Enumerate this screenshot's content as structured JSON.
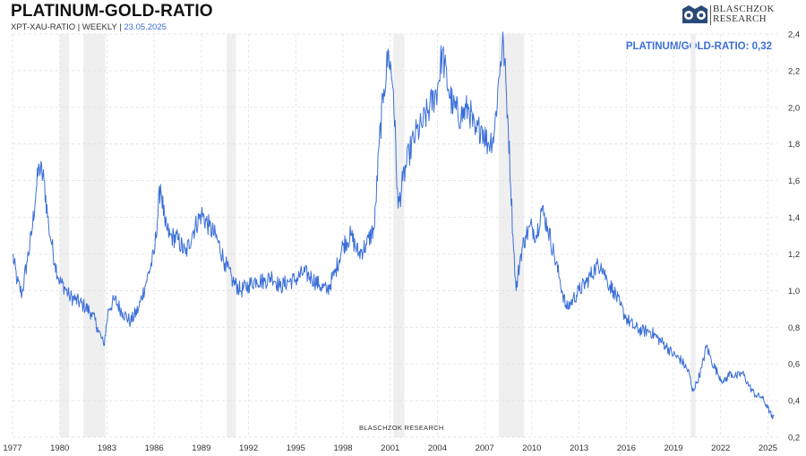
{
  "header": {
    "title": "PLATINUM-GOLD-RATIO",
    "subtitle_prefix": "XPT-XAU-RATIO | WEEKLY |",
    "date": "23.05.2025"
  },
  "logo": {
    "line1": "BLASCHZOK",
    "line2": "RESEARCH"
  },
  "readout": {
    "label": "PLATINUM/GOLD-RATIO: 0,32"
  },
  "watermark": "BLASCHZOK RESEARCH",
  "colors": {
    "line": "#3b6fd8",
    "shade": "#efefef",
    "grid": "#dcdcdc"
  },
  "chart_data": {
    "type": "line",
    "title": "PLATINUM-GOLD-RATIO",
    "xlabel": "",
    "ylabel": "",
    "xlim": [
      1977,
      2025.6
    ],
    "ylim": [
      0.2,
      2.4
    ],
    "x_ticks": [
      1977,
      1980,
      1983,
      1986,
      1989,
      1992,
      1995,
      1998,
      2001,
      2004,
      2007,
      2010,
      2013,
      2016,
      2019,
      2022,
      2025
    ],
    "y_ticks": [
      0.2,
      0.4,
      0.6,
      0.8,
      1.0,
      1.2,
      1.4,
      1.6,
      1.8,
      2.0,
      2.2,
      2.4
    ],
    "y_tick_labels": [
      "0,2",
      "0,4",
      "0,6",
      "0,8",
      "1,0",
      "1,2",
      "1,4",
      "1,6",
      "1,8",
      "2,0",
      "2,2",
      "2,4"
    ],
    "recession_shading": [
      [
        1980.0,
        1980.6
      ],
      [
        1981.5,
        1982.9
      ],
      [
        1990.6,
        1991.2
      ],
      [
        2001.2,
        2001.9
      ],
      [
        2007.9,
        2009.5
      ],
      [
        2020.1,
        2020.4
      ]
    ],
    "series": [
      {
        "name": "Platinum/Gold Ratio",
        "x": [
          1977.0,
          1977.3,
          1977.6,
          1977.9,
          1978.2,
          1978.5,
          1978.7,
          1979.0,
          1979.3,
          1979.5,
          1979.7,
          1980.0,
          1980.3,
          1980.6,
          1981.0,
          1981.5,
          1982.0,
          1982.4,
          1982.8,
          1983.1,
          1983.5,
          1984.0,
          1984.5,
          1985.0,
          1985.5,
          1986.0,
          1986.4,
          1986.7,
          1987.0,
          1987.5,
          1988.0,
          1988.5,
          1989.0,
          1989.5,
          1990.0,
          1990.5,
          1991.0,
          1991.5,
          1992.0,
          1992.5,
          1993.0,
          1993.5,
          1994.0,
          1994.5,
          1995.0,
          1995.5,
          1996.0,
          1996.5,
          1997.0,
          1997.5,
          1998.0,
          1998.5,
          1999.0,
          1999.5,
          2000.0,
          2000.3,
          2000.6,
          2000.9,
          2001.2,
          2001.5,
          2001.8,
          2002.2,
          2002.6,
          2003.0,
          2003.5,
          2004.0,
          2004.3,
          2004.7,
          2005.0,
          2005.5,
          2006.0,
          2006.4,
          2006.8,
          2007.2,
          2007.6,
          2008.0,
          2008.2,
          2008.5,
          2008.8,
          2009.0,
          2009.3,
          2009.6,
          2010.0,
          2010.3,
          2010.6,
          2011.0,
          2011.4,
          2011.8,
          2012.2,
          2012.6,
          2013.0,
          2013.5,
          2014.0,
          2014.4,
          2014.8,
          2015.2,
          2015.6,
          2016.0,
          2016.5,
          2017.0,
          2017.5,
          2018.0,
          2018.5,
          2019.0,
          2019.5,
          2020.0,
          2020.2,
          2020.5,
          2020.8,
          2021.1,
          2021.4,
          2021.8,
          2022.2,
          2022.6,
          2023.0,
          2023.4,
          2023.8,
          2024.2,
          2024.6,
          2025.0,
          2025.3,
          2025.4
        ],
        "values": [
          1.2,
          1.05,
          0.98,
          1.15,
          1.3,
          1.55,
          1.68,
          1.6,
          1.35,
          1.25,
          1.15,
          1.05,
          1.02,
          0.97,
          0.95,
          0.92,
          0.88,
          0.8,
          0.7,
          0.9,
          0.95,
          0.88,
          0.83,
          0.9,
          1.05,
          1.2,
          1.58,
          1.35,
          1.3,
          1.28,
          1.2,
          1.33,
          1.42,
          1.35,
          1.28,
          1.15,
          1.05,
          1.0,
          1.03,
          1.06,
          1.05,
          1.08,
          1.02,
          1.05,
          1.06,
          1.1,
          1.07,
          1.03,
          1.0,
          1.1,
          1.25,
          1.3,
          1.2,
          1.25,
          1.35,
          1.8,
          2.1,
          2.3,
          2.1,
          1.45,
          1.6,
          1.75,
          1.85,
          1.9,
          2.0,
          2.1,
          2.3,
          2.1,
          2.0,
          1.95,
          2.0,
          1.85,
          1.9,
          1.8,
          1.85,
          2.25,
          2.35,
          1.9,
          1.3,
          1.0,
          1.2,
          1.3,
          1.35,
          1.3,
          1.45,
          1.35,
          1.2,
          1.05,
          0.9,
          0.95,
          1.0,
          1.05,
          1.12,
          1.15,
          1.05,
          1.0,
          0.92,
          0.85,
          0.8,
          0.78,
          0.78,
          0.74,
          0.7,
          0.65,
          0.62,
          0.55,
          0.45,
          0.5,
          0.58,
          0.7,
          0.62,
          0.55,
          0.5,
          0.55,
          0.53,
          0.55,
          0.48,
          0.43,
          0.42,
          0.36,
          0.3,
          0.32
        ]
      }
    ]
  }
}
